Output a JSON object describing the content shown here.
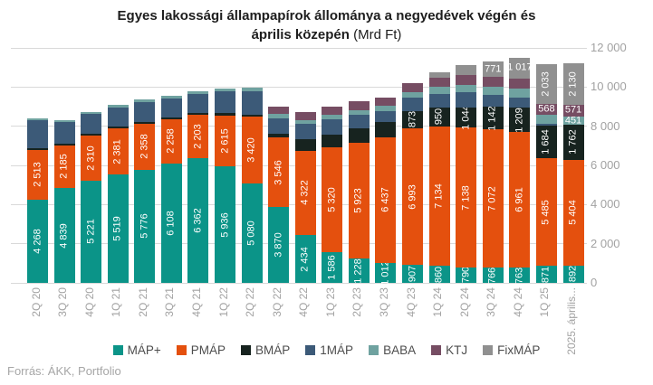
{
  "header": {
    "title_line1": "Egyes lakossági állampapírok állománya a negyedévek végén és",
    "title_line2_bold": "április közepén",
    "title_line2_unit": " (Mrd Ft)",
    "title_color": "#1d1d1d"
  },
  "footer": {
    "source": "Forrás: ÁKK, Portfolio"
  },
  "chart_data": {
    "type": "bar",
    "stacked": true,
    "title": "Egyes lakossági állampapírok állománya a negyedévek végén és április közepén (Mrd Ft)",
    "unit": "Mrd Ft",
    "ylim": [
      0,
      12000
    ],
    "grid": true,
    "grid_color": "#d9d9d9",
    "axis_text_color": "#a2a2a2",
    "legend_text_color": "#4d4d4d",
    "legend_position": "bottom",
    "yticks": [
      {
        "value": 0,
        "label": "0"
      },
      {
        "value": 2000,
        "label": "2 000"
      },
      {
        "value": 4000,
        "label": "4 000"
      },
      {
        "value": 6000,
        "label": "6 000"
      },
      {
        "value": 8000,
        "label": "8 000"
      },
      {
        "value": 10000,
        "label": "10 000"
      },
      {
        "value": 12000,
        "label": "12 000"
      }
    ],
    "categories": [
      "2Q 20",
      "3Q 20",
      "4Q 20",
      "1Q 21",
      "2Q 21",
      "3Q 21",
      "4Q 21",
      "1Q 22",
      "2Q 22",
      "3Q 22",
      "4Q 22",
      "1Q 23",
      "2Q 23",
      "3Q 23",
      "4Q 23",
      "1Q 24",
      "2Q 24",
      "3Q 24",
      "4Q 24",
      "1Q 25",
      "2025. április..."
    ],
    "series": [
      {
        "name": "MÁP+",
        "color": "#0b9488",
        "label_dir": "v",
        "values": [
          4268,
          4839,
          5221,
          5519,
          5776,
          6108,
          6362,
          5936,
          5080,
          3870,
          2434,
          1586,
          1228,
          1012,
          907,
          860,
          790,
          766,
          763,
          871,
          892
        ],
        "labels": [
          "4 268",
          "4 839",
          "5 221",
          "5 519",
          "5 776",
          "6 108",
          "6 362",
          "5 936",
          "5 080",
          "3 870",
          "2 434",
          "1 586",
          "1 228",
          "1 012",
          "907",
          "860",
          "790",
          "766",
          "763",
          "871",
          "892"
        ]
      },
      {
        "name": "PMÁP",
        "color": "#e4500e",
        "label_dir": "v",
        "values": [
          2513,
          2185,
          2310,
          2381,
          2358,
          2258,
          2203,
          2615,
          3420,
          3546,
          4322,
          5320,
          5923,
          6437,
          6993,
          7134,
          7138,
          7072,
          6961,
          5485,
          5404
        ],
        "labels": [
          "2 513",
          "2 185",
          "2 310",
          "2 381",
          "2 358",
          "2 258",
          "2 203",
          "2 615",
          "3 420",
          "3 546",
          "4 322",
          "5 320",
          "5 923",
          "6 437",
          "6 993",
          "7 134",
          "7 138",
          "7 072",
          "6 961",
          "5 485",
          "5 404"
        ]
      },
      {
        "name": "BMÁP",
        "color": "#17231f",
        "label_dir": "v",
        "values": [
          100,
          90,
          80,
          80,
          90,
          80,
          90,
          120,
          90,
          185,
          570,
          680,
          725,
          780,
          873,
          950,
          1044,
          1142,
          1209,
          1684,
          1762
        ],
        "labels": [
          "",
          "",
          "",
          "",
          "",
          "",
          "",
          "",
          "",
          "",
          "",
          "",
          "",
          "",
          "873",
          "950",
          "1 044",
          "1 142",
          "1 209",
          "1 684",
          "1 762"
        ]
      },
      {
        "name": "1MÁP",
        "color": "#3c5a78",
        "label_dir": "v",
        "values": [
          1430,
          1100,
          1010,
          990,
          1010,
          980,
          1000,
          1120,
          1200,
          820,
          800,
          770,
          725,
          560,
          690,
          700,
          750,
          600,
          550,
          100,
          0
        ],
        "labels": [
          "",
          "",
          "",
          "",
          "",
          "",
          "",
          "",
          "",
          "",
          "",
          "",
          "",
          "",
          "",
          "",
          "",
          "",
          "",
          "",
          ""
        ]
      },
      {
        "name": "BABA",
        "color": "#6fa2a0",
        "label_dir": "h",
        "values": [
          95,
          100,
          105,
          115,
          125,
          135,
          145,
          155,
          165,
          200,
          200,
          210,
          220,
          240,
          275,
          370,
          400,
          420,
          430,
          430,
          451
        ],
        "labels": [
          "",
          "",
          "",
          "",
          "",
          "",
          "",
          "",
          "",
          "",
          "",
          "",
          "",
          "",
          "",
          "",
          "",
          "",
          "",
          "",
          "451"
        ]
      },
      {
        "name": "KTJ",
        "color": "#764d63",
        "label_dir": "h",
        "values": [
          0,
          0,
          0,
          0,
          0,
          0,
          0,
          0,
          0,
          400,
          415,
          430,
          445,
          455,
          470,
          485,
          500,
          520,
          540,
          568,
          571
        ],
        "labels": [
          "",
          "",
          "",
          "",
          "",
          "",
          "",
          "",
          "",
          "",
          "",
          "",
          "",
          "",
          "",
          "",
          "",
          "",
          "",
          "568",
          "571"
        ]
      },
      {
        "name": "FixMÁP",
        "color": "#909090",
        "label_dir": [
          "",
          "",
          "",
          "",
          "",
          "",
          "",
          "",
          "",
          "",
          "",
          "",
          "",
          "",
          "",
          "",
          "",
          "h",
          "h",
          "v",
          "v"
        ],
        "values": [
          0,
          0,
          0,
          0,
          0,
          0,
          0,
          0,
          0,
          0,
          0,
          0,
          0,
          0,
          0,
          250,
          500,
          771,
          1017,
          2033,
          2130
        ],
        "labels": [
          "",
          "",
          "",
          "",
          "",
          "",
          "",
          "",
          "",
          "",
          "",
          "",
          "",
          "",
          "",
          "",
          "",
          "771",
          "1 017",
          "2 033",
          "2 130"
        ]
      }
    ]
  }
}
